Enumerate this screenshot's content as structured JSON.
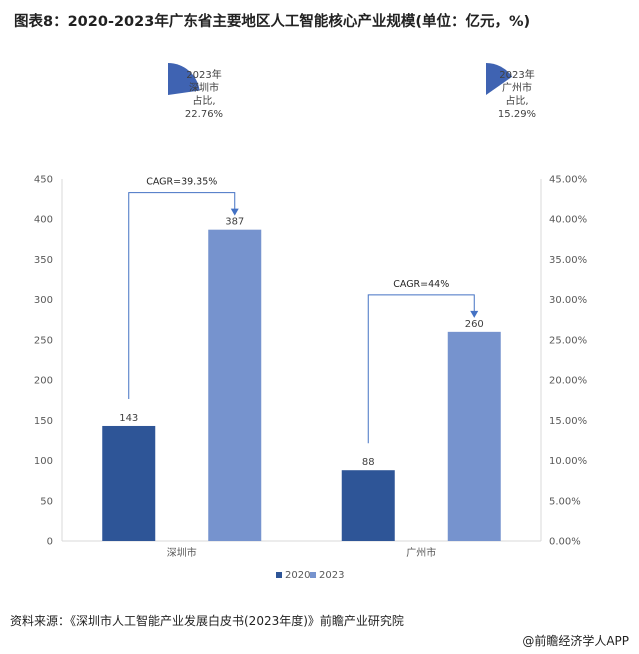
{
  "title": "图表8：2020-2023年广东省主要地区人工智能核心产业规模(单位：亿元，%)",
  "source": "资料来源：《深圳市人工智能产业发展白皮书(2023年度)》前瞻产业研究院",
  "credit": "@前瞻经济学人APP",
  "chart_data": {
    "type": "bar",
    "categories": [
      "深圳市",
      "广州市"
    ],
    "series": [
      {
        "name": "2020",
        "values": [
          143,
          88
        ],
        "color": "#2E5597"
      },
      {
        "name": "2023",
        "values": [
          387,
          260
        ],
        "color": "#7693CE"
      }
    ],
    "ylim": [
      0,
      450
    ],
    "yticks": [
      "0",
      "50",
      "100",
      "150",
      "200",
      "250",
      "300",
      "350",
      "400",
      "450"
    ],
    "y2lim": [
      0,
      45
    ],
    "y2ticks": [
      "0.00%",
      "5.00%",
      "10.00%",
      "15.00%",
      "20.00%",
      "25.00%",
      "30.00%",
      "35.00%",
      "40.00%",
      "45.00%"
    ],
    "annotations": [
      {
        "text": "CAGR=39.35%",
        "category": 0
      },
      {
        "text": "CAGR=44%",
        "category": 1
      }
    ],
    "pies": [
      {
        "label_lines": [
          "2023年",
          "深圳市",
          "占比,",
          "22.76%"
        ],
        "value": 22.76,
        "color": "#3F63B2"
      },
      {
        "label_lines": [
          "2023年",
          "广州市",
          "占比,",
          "15.29%"
        ],
        "value": 15.29,
        "color": "#3F63B2"
      }
    ],
    "legend_position": "bottom",
    "grid": false
  }
}
